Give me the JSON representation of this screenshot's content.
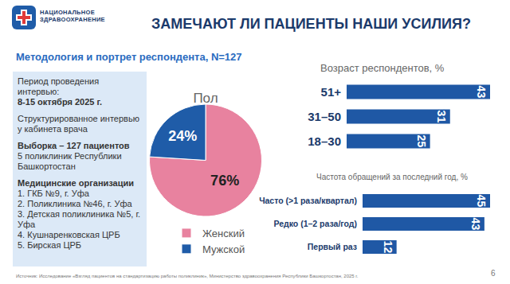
{
  "header": {
    "logo_text": [
      "НАЦИОНАЛЬНОЕ",
      "ЗДРАВООХРАНЕНИЕ"
    ],
    "title": "ЗАМЕЧАЮТ ЛИ ПАЦИЕНТЫ НАШИ УСИЛИЯ?",
    "page": "6"
  },
  "section_title": "Методология и портрет респондента, N=127",
  "panel": [
    [
      {
        "text": "Период проведения интервью:",
        "weight": "normal"
      },
      {
        "text": "8-15 октября 2025 г.",
        "weight": "bold"
      }
    ],
    [
      {
        "text": "Структурированное интервью у кабинета врача",
        "weight": "normal"
      }
    ],
    [
      {
        "text": "Выборка – 127 пациентов",
        "weight": "bold"
      },
      {
        "text": "5 поликлиник Республики Башкортостан",
        "weight": "normal"
      }
    ],
    [
      {
        "text": "Медицинские организации",
        "weight": "bold"
      },
      {
        "text": "1. ГКБ №9, г. Уфа",
        "weight": "normal"
      },
      {
        "text": "2. Поликлиника №46, г. Уфа",
        "weight": "normal"
      },
      {
        "text": "3. Детская поликлиника №5, г. Уфа",
        "weight": "normal"
      },
      {
        "text": "4. Кушнаренковская ЦРБ",
        "weight": "normal"
      },
      {
        "text": "5. Бирская ЦРБ",
        "weight": "normal"
      }
    ]
  ],
  "source": "Источник: Исследование «Взгляд пациентов на стандартизацию работы поликлиник», Министерство здравоохранения Республики Башкортостан, 2025 г.",
  "chart_data": [
    {
      "type": "pie",
      "title": "Пол",
      "categories": [
        "Женский",
        "Мужской"
      ],
      "values": [
        76,
        24
      ],
      "value_labels": [
        "76%",
        "24%"
      ],
      "colors": [
        "#e8829f",
        "#1f5ca8"
      ],
      "data_labels": true,
      "legend": "bottom"
    },
    {
      "type": "bar",
      "title": "Возраст респондентов, %",
      "orientation": "horizontal",
      "categories": [
        "51+",
        "31–50",
        "18–30"
      ],
      "values": [
        43,
        31,
        25
      ],
      "color": "#1f58a5",
      "xlim": [
        0,
        43
      ],
      "data_labels": true,
      "tick_labels": "y",
      "grid": false
    },
    {
      "type": "bar",
      "title": "Частота обращений за последний год, %",
      "orientation": "horizontal",
      "categories": [
        "Часто (>1 раза/квартал)",
        "Редко (1–2 раза/год)",
        "Первый раз"
      ],
      "values": [
        45,
        43,
        12
      ],
      "color": "#1f58a5",
      "xlim": [
        0,
        45
      ],
      "data_labels": true,
      "tick_labels": "y",
      "grid": false
    }
  ]
}
